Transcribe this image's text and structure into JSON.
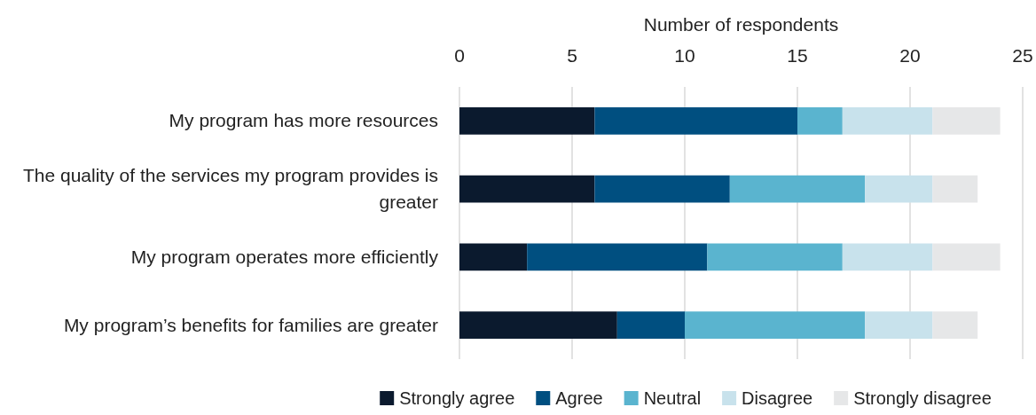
{
  "chart_data": {
    "type": "bar",
    "orientation": "horizontal",
    "stacked": true,
    "xlabel": "Number of respondents",
    "categories": [
      "My program has more resources",
      "The quality of the services my program provides is greater",
      "My program operates more efficiently",
      "My program’s benefits for families are greater"
    ],
    "series": [
      {
        "name": "Strongly agree",
        "color": "#0b1a2e",
        "values": [
          6,
          6,
          3,
          7
        ]
      },
      {
        "name": "Agree",
        "color": "#004f80",
        "values": [
          9,
          6,
          8,
          3
        ]
      },
      {
        "name": "Neutral",
        "color": "#5ab4cf",
        "values": [
          2,
          6,
          6,
          8
        ]
      },
      {
        "name": "Disagree",
        "color": "#c8e2ec",
        "values": [
          4,
          3,
          4,
          3
        ]
      },
      {
        "name": "Strongly disagree",
        "color": "#e6e7e8",
        "values": [
          3,
          2,
          3,
          2
        ]
      }
    ],
    "xlim": [
      0,
      25
    ],
    "xticks": [
      0,
      5,
      10,
      15,
      20,
      25
    ],
    "grid": "x",
    "legend": "bottom"
  }
}
